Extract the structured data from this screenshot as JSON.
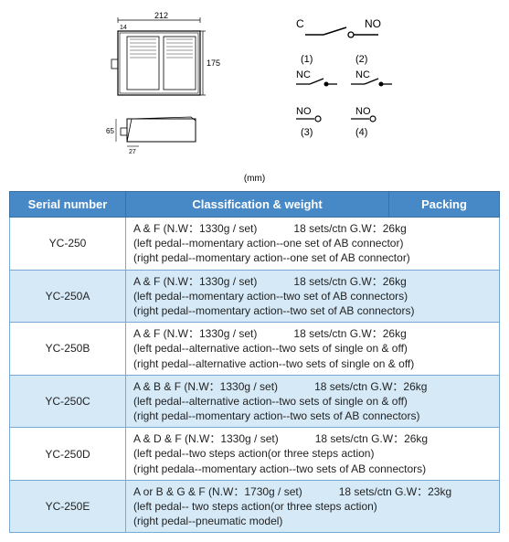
{
  "diagram": {
    "width_dim": "212",
    "width_sub": "14",
    "height_dim": "175",
    "side_height": "65",
    "side_depth": "27",
    "unit_label": "(mm)",
    "schematic": {
      "c_label": "C",
      "no_label": "NO",
      "nc_label": "NC",
      "pos1": "(1)",
      "pos2": "(2)",
      "pos3": "(3)",
      "pos4": "(4)"
    }
  },
  "table": {
    "headers": {
      "serial": "Serial number",
      "classification": "Classification & weight",
      "packing": "Packing"
    },
    "rows": [
      {
        "serial": "YC-250",
        "spec": "A & F   (N.W：1330g / set)",
        "pack": "18 sets/ctn G.W：26kg",
        "line2": "(left pedal--momentary action--one set of AB connector)",
        "line3": "(right pedal--momentary action--one set of AB connector)",
        "alt": false
      },
      {
        "serial": "YC-250A",
        "spec": "A & F   (N.W：1330g / set)",
        "pack": "18 sets/ctn G.W：26kg",
        "line2": "(left pedal--momentary action--two set of AB connectors)",
        "line3": "(right pedal--momentary action--two set of AB connectors)",
        "alt": true
      },
      {
        "serial": "YC-250B",
        "spec": "A & F   (N.W：1330g / set)",
        "pack": "18 sets/ctn G.W：26kg",
        "line2": "(left pedal--alternative action--two sets of single on & off)",
        "line3": "(right pedal--alternative action--two sets of single on & off)",
        "alt": false
      },
      {
        "serial": "YC-250C",
        "spec": "A & B & F   (N.W：1330g / set)",
        "pack": "18 sets/ctn G.W：26kg",
        "line2": "(left pedal--alternative action--two sets of single on & off)",
        "line3": "(right pedal--momentary action--two sets of AB connectors)",
        "alt": true
      },
      {
        "serial": "YC-250D",
        "spec": "A & D & F   (N.W：1330g / set)",
        "pack": "18 sets/ctn G.W：26kg",
        "line2": "(left pedal--two steps action(or three steps action)",
        "line3": "(right pedala--momentary action--two sets of AB connectors)",
        "alt": false
      },
      {
        "serial": "YC-250E",
        "spec": "A or B & G & F   (N.W：1730g / set)",
        "pack": "18 sets/ctn G.W：23kg",
        "line2": "(left pedal-- two steps action(or three steps action)",
        "line3": "(right pedal--pneumatic model)",
        "alt": true
      }
    ]
  }
}
